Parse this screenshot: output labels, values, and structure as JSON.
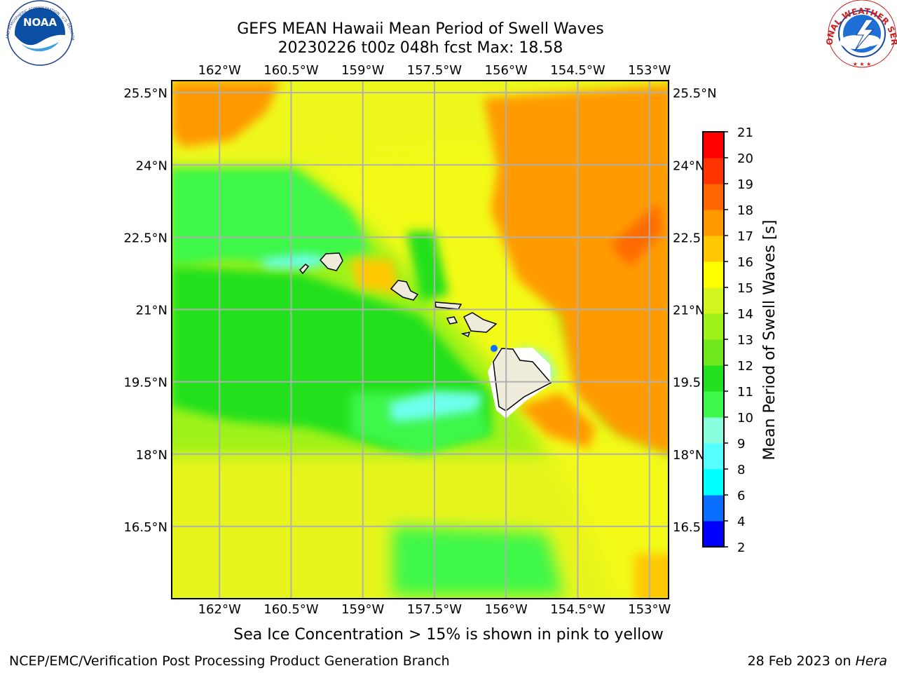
{
  "title": {
    "line1": "GEFS MEAN Hawaii Mean Period of Swell Waves",
    "line2": "20230226 t00z 048h fcst   Max: 18.58"
  },
  "logos": {
    "noaa_text": "NOAA",
    "noaa_ring": "NATIONAL OCEANIC AND ATMOSPHERIC ADMINISTRATION · U.S. DEPARTMENT OF COMMERCE",
    "nws_ring": "NATIONAL WEATHER SERVICE"
  },
  "chart_data": {
    "type": "heatmap",
    "lon_ticks": [
      "162°W",
      "160.5°W",
      "159°W",
      "157.5°W",
      "156°W",
      "154.5°W",
      "153°W"
    ],
    "lon_values": [
      -162,
      -160.5,
      -159,
      -157.5,
      -156,
      -154.5,
      -153
    ],
    "lat_ticks": [
      "25.5°N",
      "24°N",
      "22.5°N",
      "21°N",
      "19.5°N",
      "18°N",
      "16.5°N"
    ],
    "lat_values": [
      25.5,
      24,
      22.5,
      21,
      19.5,
      18,
      16.5
    ],
    "xlim": [
      -163,
      -152.6
    ],
    "ylim": [
      15.0,
      25.75
    ],
    "grid": true,
    "colorbar": {
      "label": "Mean Period of Swell Waves [s]",
      "ticks": [
        "2",
        "4",
        "6",
        "8",
        "9",
        "10",
        "11",
        "12",
        "13",
        "14",
        "15",
        "16",
        "17",
        "18",
        "19",
        "20",
        "21"
      ],
      "colors": [
        "#0000ff",
        "#0a6fff",
        "#00ffff",
        "#55ffff",
        "#8affdd",
        "#3df74a",
        "#22e01f",
        "#6ee81c",
        "#9ef21a",
        "#d4f51e",
        "#ffff00",
        "#ffc800",
        "#ff9900",
        "#ff6600",
        "#ff3300",
        "#ff0000"
      ]
    },
    "annotation": "Sea Ice Concentration > 15% is shown in pink to yellow"
  },
  "footer": {
    "left": "NCEP/EMC/Verification Post Processing Product Generation Branch",
    "right_prefix": "28 Feb 2023 on ",
    "right_host": "Hera"
  }
}
